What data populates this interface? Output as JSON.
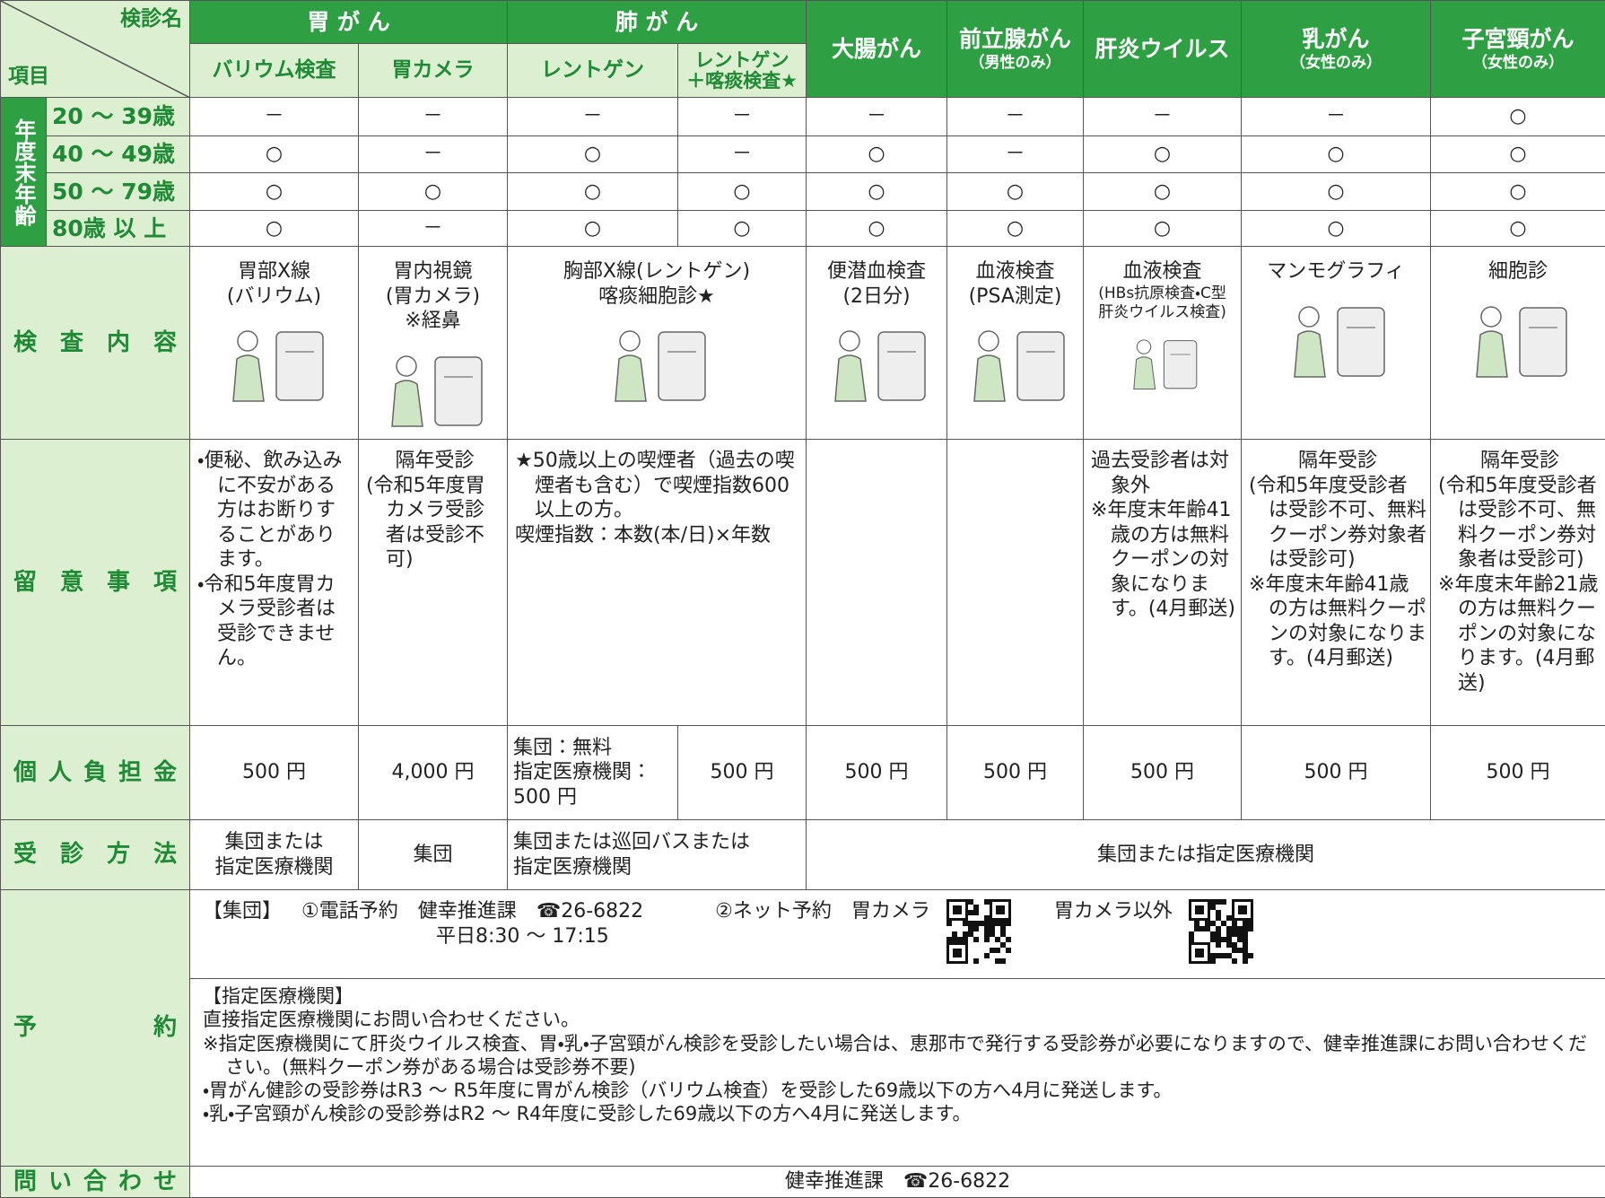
{
  "header": {
    "corner_top": "検診名",
    "corner_bottom": "項目",
    "groups": [
      {
        "label": "胃 が ん",
        "subs": [
          "バリウム検査",
          "胃カメラ"
        ]
      },
      {
        "label": "肺 が ん",
        "subs": [
          "レントゲン",
          "レントゲン\n＋喀痰検査★"
        ]
      }
    ],
    "columns": [
      {
        "label": "大腸がん"
      },
      {
        "label": "前立腺がん",
        "note": "（男性のみ）"
      },
      {
        "label": "肝炎ウイルス"
      },
      {
        "label": "乳がん",
        "note": "（女性のみ）"
      },
      {
        "label": "子宮頸がん",
        "note": "（女性のみ）"
      }
    ]
  },
  "age_section": {
    "label": "年度末年齢",
    "rows": [
      {
        "age": "20 ～ 39歳",
        "cells": [
          "－",
          "－",
          "－",
          "－",
          "－",
          "－",
          "－",
          "－",
          "○"
        ]
      },
      {
        "age": "40 ～ 49歳",
        "cells": [
          "○",
          "－",
          "○",
          "－",
          "○",
          "－",
          "○",
          "○",
          "○"
        ]
      },
      {
        "age": "50 ～ 79歳",
        "cells": [
          "○",
          "○",
          "○",
          "○",
          "○",
          "○",
          "○",
          "○",
          "○"
        ]
      },
      {
        "age": "80歳 以 上",
        "cells": [
          "○",
          "－",
          "○",
          "○",
          "○",
          "○",
          "○",
          "○",
          "○"
        ]
      }
    ]
  },
  "exam": {
    "label": "検 査 内 容",
    "cells": [
      {
        "text": "胃部X線\n(バリウム)"
      },
      {
        "text": "胃内視鏡\n(胃カメラ)\n※経鼻"
      },
      {
        "text": "胸部X線(レントゲン)\n喀痰細胞診★"
      },
      {
        "text": "便潜血検査\n(2日分)"
      },
      {
        "text": "血液検査\n(PSA測定)"
      },
      {
        "text": "血液検査",
        "note": "(HBs抗原検査・C型\n肝炎ウイルス検査)"
      },
      {
        "text": "マンモグラフィ"
      },
      {
        "text": "細胞診"
      }
    ]
  },
  "notes": {
    "label": "留 意 事 項",
    "cells": [
      {
        "lines": [
          "・便秘、飲み込みに不安がある方はお断りすることがあります。",
          "・令和5年度胃カメラ受診者は受診できません。"
        ]
      },
      {
        "heading": "隔年受診",
        "lines": [
          "(令和5年度胃カメラ受診者は受診不可)"
        ]
      },
      {
        "lines": [
          "★50歳以上の喫煙者（過去の喫煙者も含む）で喫煙指数600以上の方。",
          "喫煙指数：本数(本/日)×年数"
        ]
      },
      null,
      null,
      {
        "lines": [
          "過去受診者は対象外",
          "※年度末年齢41歳の方は無料クーポンの対象になります。(4月郵送)"
        ]
      },
      {
        "heading": "隔年受診",
        "lines": [
          "(令和5年度受診者は受診不可、無料クーポン券対象者は受診可)",
          "※年度末年齢41歳の方は無料クーポンの対象になります。(4月郵送)"
        ]
      },
      {
        "heading": "隔年受診",
        "lines": [
          "(令和5年度受診者は受診不可、無料クーポン券対象者は受診可)",
          "※年度末年齢21歳の方は無料クーポンの対象になります。(4月郵送)"
        ]
      }
    ]
  },
  "cost": {
    "label": "個 人 負 担 金",
    "cells": [
      "500 円",
      "4,000 円",
      "集団：無料\n指定医療機関：\n500 円",
      "500 円",
      "500 円",
      "500 円",
      "500 円",
      "500 円",
      "500 円"
    ]
  },
  "method": {
    "label": "受 診 方 法",
    "cells": [
      "集団または\n指定医療機関",
      "集団",
      "集団または巡回バスまたは\n指定医療機関",
      "集団または指定医療機関"
    ]
  },
  "reservation": {
    "label": "予 約",
    "group": {
      "label": "【集団】",
      "phone_label": "①電話予約",
      "dept": "健幸推進課",
      "phone": "☎26-6822",
      "hours": "平日8:30 ～ 17:15",
      "net_label": "②ネット予約",
      "qr1_label": "胃カメラ",
      "qr2_label": "胃カメラ以外"
    },
    "designated": {
      "label": "【指定医療機関】",
      "lines": [
        "直接指定医療機関にお問い合わせください。",
        "※指定医療機関にて肝炎ウイルス検査、胃・乳・子宮頸がん検診を受診したい場合は、恵那市で発行する受診券が必要になりますので、健幸推進課にお問い合わせください。(無料クーポン券がある場合は受診券不要)",
        "・胃がん健診の受診券はR3 ～ R5年度に胃がん検診（バリウム検査）を受診した69歳以下の方へ4月に発送します。",
        "・乳・子宮頸がん検診の受診券はR2 ～ R4年度に受診した69歳以下の方へ4月に発送します。"
      ]
    }
  },
  "contact": {
    "label": "問 い 合 わ せ",
    "value": "健幸推進課　☎26-6822"
  }
}
